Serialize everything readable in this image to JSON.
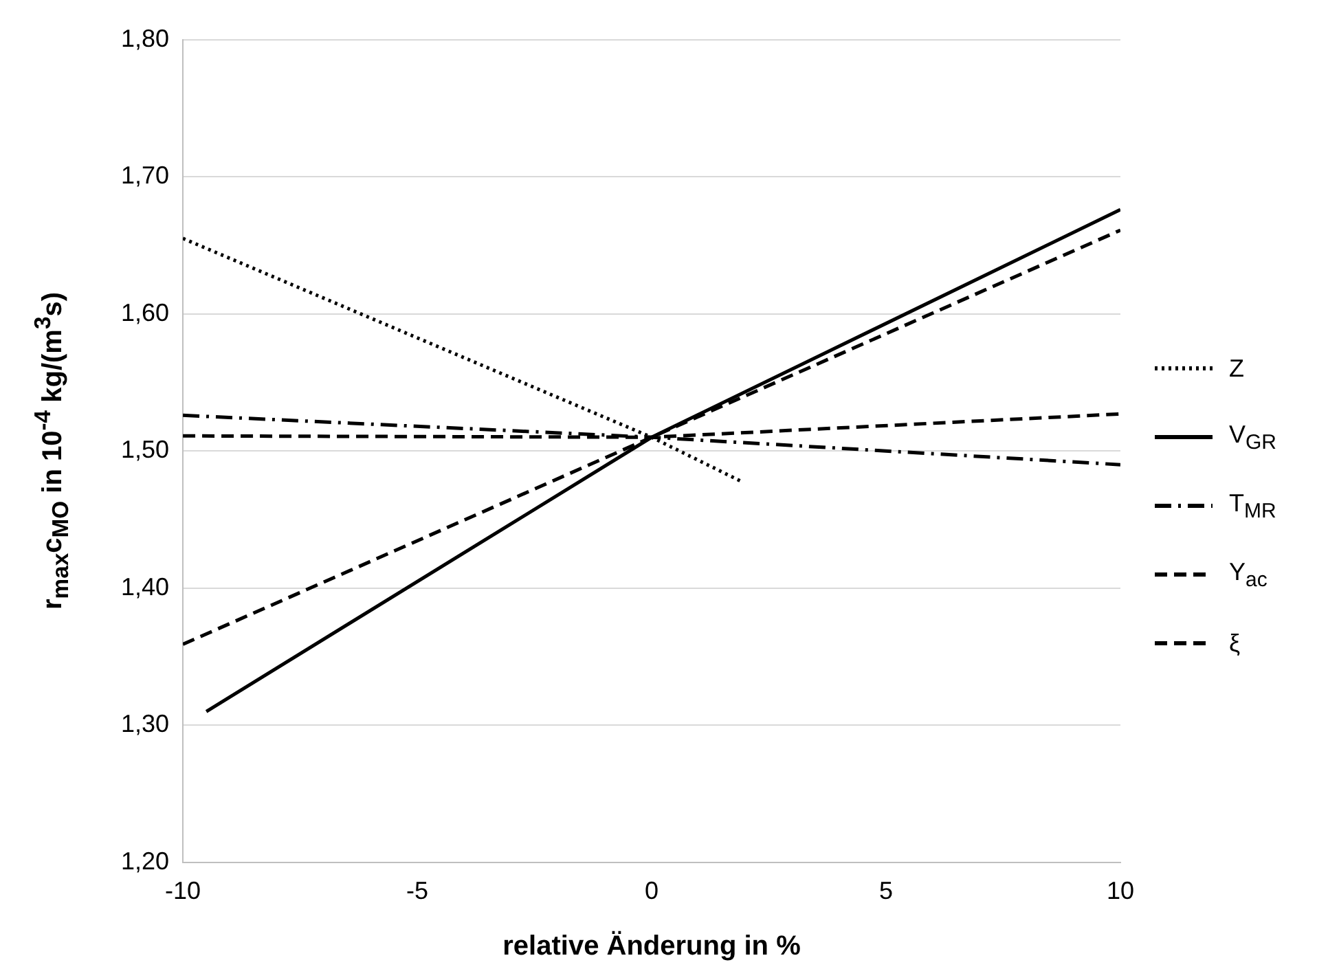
{
  "chart_data": {
    "type": "line",
    "xlabel": "relative Änderung in %",
    "ylabel": "r$_{max}$c$_{MO}$ in 10$^{-4}$ kg/(m$^{3}$s)",
    "xlim": [
      -10,
      10
    ],
    "xticks": [
      -10,
      -5,
      0,
      5,
      10
    ],
    "ylim": [
      1.2,
      1.8
    ],
    "yticks": [
      {
        "value": 1.2,
        "label": "1,20"
      },
      {
        "value": 1.3,
        "label": "1,30"
      },
      {
        "value": 1.4,
        "label": "1,40"
      },
      {
        "value": 1.5,
        "label": "1,50"
      },
      {
        "value": 1.6,
        "label": "1,60"
      },
      {
        "value": 1.7,
        "label": "1,70"
      },
      {
        "value": 1.8,
        "label": "1,80"
      }
    ],
    "grid": "y",
    "legend": "right",
    "marker": "none",
    "series": [
      {
        "name": "Z",
        "color": "#000000",
        "line_style": "dotted",
        "x": [
          -10,
          0,
          1.9
        ],
        "values": [
          1.655,
          1.51,
          1.478
        ]
      },
      {
        "name": "V$_{GR}$",
        "color": "#000000",
        "line_style": "solid",
        "x": [
          -9.5,
          0,
          10
        ],
        "values": [
          1.31,
          1.51,
          1.676
        ]
      },
      {
        "name": "T$_{MR}$",
        "color": "#000000",
        "line_style": "dashdot",
        "x": [
          -10,
          0,
          10
        ],
        "values": [
          1.526,
          1.51,
          1.49
        ]
      },
      {
        "name": "Y$_{ac}$",
        "color": "#000000",
        "line_style": "dashed",
        "x": [
          -10,
          0,
          10
        ],
        "values": [
          1.511,
          1.51,
          1.527
        ]
      },
      {
        "name": "ξ",
        "color": "#000000",
        "line_style": "dashed",
        "x": [
          -10,
          0,
          10
        ],
        "values": [
          1.359,
          1.51,
          1.661
        ]
      }
    ]
  }
}
